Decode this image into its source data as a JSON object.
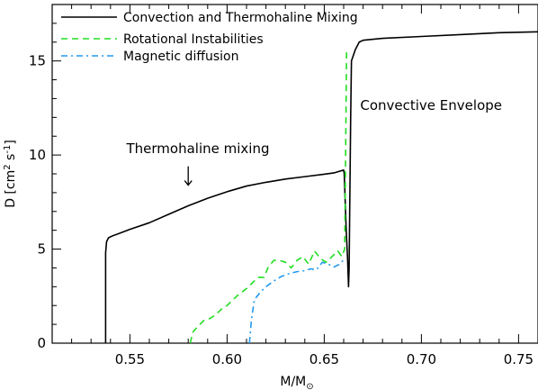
{
  "chart_data": {
    "type": "line",
    "title": "",
    "xlabel": "M/M",
    "xlabel_subscript": "⊙",
    "ylabel": "D [cm",
    "ylabel_sup1": "2",
    "ylabel_mid": " s",
    "ylabel_sup2": "-1",
    "ylabel_end": "]",
    "xlim": [
      0.51,
      0.76
    ],
    "ylim": [
      0,
      18
    ],
    "xticks": [
      0.55,
      0.6,
      0.65,
      0.7,
      0.75
    ],
    "xtick_labels": [
      "0.55",
      "0.60",
      "0.65",
      "0.70",
      "0.75"
    ],
    "yticks": [
      0,
      5,
      10,
      15
    ],
    "ytick_labels": [
      "0",
      "5",
      "10",
      "15"
    ],
    "grid": false,
    "legend_position": "top-left",
    "series": [
      {
        "name": "Convection and Thermohaline Mixing",
        "color": "#000000",
        "dash": "solid",
        "points": [
          [
            0.5375,
            0
          ],
          [
            0.5375,
            4.8
          ],
          [
            0.538,
            5.4
          ],
          [
            0.539,
            5.6
          ],
          [
            0.541,
            5.7
          ],
          [
            0.545,
            5.85
          ],
          [
            0.55,
            6.05
          ],
          [
            0.56,
            6.4
          ],
          [
            0.57,
            6.85
          ],
          [
            0.58,
            7.3
          ],
          [
            0.59,
            7.7
          ],
          [
            0.6,
            8.05
          ],
          [
            0.61,
            8.35
          ],
          [
            0.62,
            8.55
          ],
          [
            0.63,
            8.72
          ],
          [
            0.64,
            8.85
          ],
          [
            0.65,
            8.98
          ],
          [
            0.655,
            9.05
          ],
          [
            0.66,
            9.2
          ],
          [
            0.6603,
            9.0
          ],
          [
            0.6608,
            7.5
          ],
          [
            0.6613,
            6.0
          ],
          [
            0.662,
            4.5
          ],
          [
            0.6625,
            3.0
          ],
          [
            0.6628,
            4.0
          ],
          [
            0.6632,
            8.0
          ],
          [
            0.6636,
            12.0
          ],
          [
            0.664,
            15.0
          ],
          [
            0.666,
            15.6
          ],
          [
            0.668,
            16.0
          ],
          [
            0.67,
            16.1
          ],
          [
            0.68,
            16.2
          ],
          [
            0.7,
            16.3
          ],
          [
            0.72,
            16.4
          ],
          [
            0.74,
            16.5
          ],
          [
            0.76,
            16.55
          ]
        ]
      },
      {
        "name": "Rotational Instabilities",
        "color": "#22dd22",
        "dash": "dashed",
        "points": [
          [
            0.581,
            0
          ],
          [
            0.5825,
            0.6
          ],
          [
            0.585,
            0.9
          ],
          [
            0.588,
            1.2
          ],
          [
            0.591,
            1.3
          ],
          [
            0.594,
            1.5
          ],
          [
            0.597,
            1.8
          ],
          [
            0.6,
            2.0
          ],
          [
            0.605,
            2.5
          ],
          [
            0.61,
            2.9
          ],
          [
            0.613,
            3.2
          ],
          [
            0.616,
            3.5
          ],
          [
            0.619,
            3.5
          ],
          [
            0.621,
            4.0
          ],
          [
            0.624,
            4.4
          ],
          [
            0.627,
            4.4
          ],
          [
            0.63,
            4.3
          ],
          [
            0.633,
            4.0
          ],
          [
            0.636,
            4.4
          ],
          [
            0.639,
            4.6
          ],
          [
            0.642,
            4.2
          ],
          [
            0.645,
            4.9
          ],
          [
            0.648,
            4.5
          ],
          [
            0.651,
            4.3
          ],
          [
            0.654,
            4.6
          ],
          [
            0.657,
            4.9
          ],
          [
            0.659,
            4.6
          ],
          [
            0.6605,
            5.0
          ],
          [
            0.661,
            10.0
          ],
          [
            0.6615,
            15.5
          ]
        ]
      },
      {
        "name": "Magnetic diffusion",
        "color": "#2299ee",
        "dash": "dashdot",
        "points": [
          [
            0.6115,
            0
          ],
          [
            0.6125,
            1.2
          ],
          [
            0.614,
            2.3
          ],
          [
            0.617,
            2.7
          ],
          [
            0.62,
            3.0
          ],
          [
            0.624,
            3.3
          ],
          [
            0.628,
            3.55
          ],
          [
            0.632,
            3.7
          ],
          [
            0.636,
            3.8
          ],
          [
            0.64,
            3.85
          ],
          [
            0.643,
            3.95
          ],
          [
            0.646,
            3.9
          ],
          [
            0.649,
            4.3
          ],
          [
            0.652,
            4.2
          ],
          [
            0.655,
            4.05
          ],
          [
            0.658,
            4.2
          ],
          [
            0.6605,
            4.5
          ]
        ]
      }
    ],
    "annotations": [
      {
        "text": "Thermohaline mixing",
        "x": 0.585,
        "y": 10.1
      },
      {
        "text": "Convective Envelope",
        "x": 0.705,
        "y": 12.4
      }
    ],
    "arrow": {
      "x": 0.58,
      "y_from": 9.4,
      "y_to": 8.4
    }
  }
}
